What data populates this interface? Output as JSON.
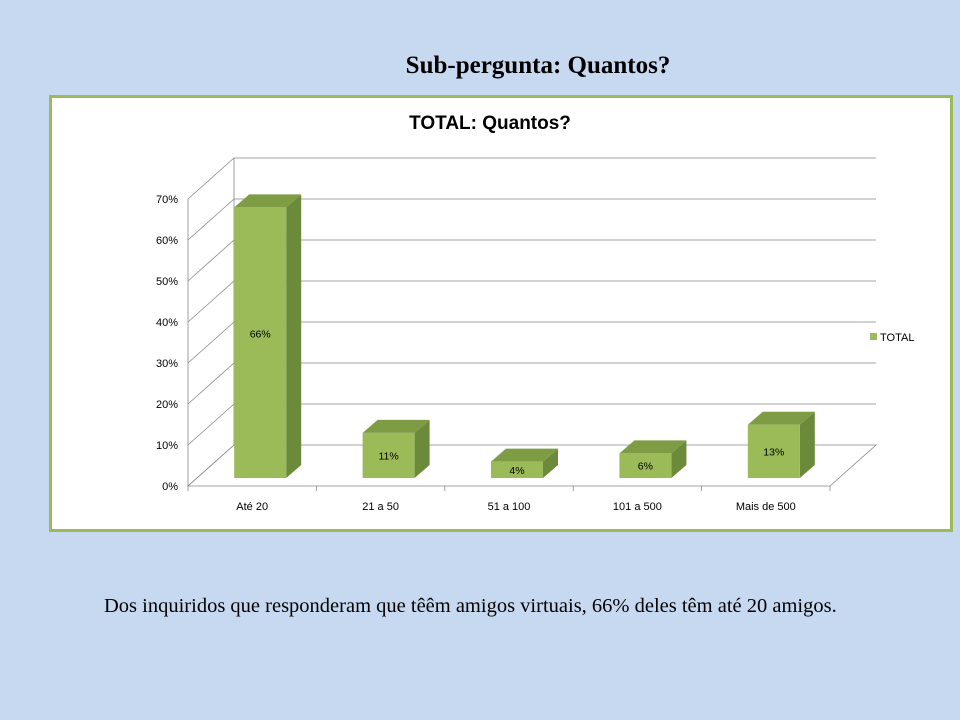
{
  "slide": {
    "title": "Sub-pergunta: Quantos?",
    "caption": "Dos inquiridos que responderam que têêm amigos virtuais, 66% deles têm até 20 amigos."
  },
  "chart_data": {
    "type": "bar",
    "title": "TOTAL: Quantos?",
    "categories": [
      "Até 20",
      "21 a 50",
      "51 a 100",
      "101 a 500",
      "Mais de 500"
    ],
    "series": [
      {
        "name": "TOTAL",
        "values": [
          66,
          11,
          4,
          6,
          13
        ],
        "labels": [
          "66%",
          "11%",
          "4%",
          "6%",
          "13%"
        ]
      }
    ],
    "y_ticks": [
      "0%",
      "10%",
      "20%",
      "30%",
      "40%",
      "50%",
      "60%",
      "70%"
    ],
    "ylim": [
      0,
      70
    ],
    "grid": true,
    "legend": "right",
    "three_d": true,
    "colors": {
      "front": "#9bbb59",
      "side": "#6b8a3a",
      "top": "#7e9c44",
      "frame": "#9bbb59"
    }
  }
}
